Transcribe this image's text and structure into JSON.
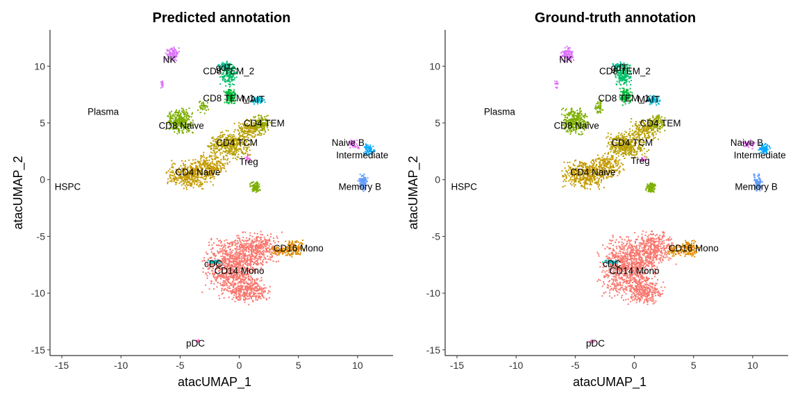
{
  "chart_data": [
    {
      "type": "scatter",
      "title": "Predicted annotation",
      "xlabel": "atacUMAP_1",
      "ylabel": "atacUMAP_2",
      "xlim": [
        -16,
        13
      ],
      "ylim": [
        -15.5,
        13.2
      ],
      "xticks": [
        -15,
        -10,
        -5,
        0,
        5,
        10
      ],
      "yticks": [
        -15,
        -10,
        -5,
        0,
        5,
        10
      ],
      "grid": false,
      "clusters": [
        {
          "name": "CD14 Mono",
          "color": "#F8766D",
          "label_x": 0,
          "label_y": -8.0,
          "label": "CD14 Mono"
        },
        {
          "name": "CD16 Mono",
          "color": "#DE8C00",
          "label_x": 5,
          "label_y": -6.0,
          "label": "CD16 Mono"
        },
        {
          "name": "CD4 Naive",
          "color": "#C49A00",
          "label_x": -3.5,
          "label_y": 0.7,
          "label": "CD4 Naive"
        },
        {
          "name": "CD4 TCM",
          "color": "#B79F00",
          "label_x": -0.2,
          "label_y": 3.3,
          "label": "CD4 TCM"
        },
        {
          "name": "CD4 TEM",
          "color": "#99A800",
          "label_x": 2.1,
          "label_y": 5.0,
          "label": "CD4 TEM"
        },
        {
          "name": "CD8 Naive",
          "color": "#7CAE00",
          "label_x": -4.9,
          "label_y": 4.8,
          "label": "CD8 Naive"
        },
        {
          "name": "CD8 TEM_1",
          "color": "#00BA38",
          "label_x": -0.9,
          "label_y": 7.2,
          "label": "CD8 TEM_1"
        },
        {
          "name": "CD8 TEM_2",
          "color": "#00BE67",
          "label_x": -0.9,
          "label_y": 9.6,
          "label": "CD8 TEM_2"
        },
        {
          "name": "gdT",
          "color": "#00C19A",
          "label_x": -1.3,
          "label_y": 9.9,
          "label": "gdT"
        },
        {
          "name": "MAIT",
          "color": "#00BCD8",
          "label_x": 1.2,
          "label_y": 7.1,
          "label": "MAIT"
        },
        {
          "name": "Treg",
          "color": "#F564E3",
          "label_x": 0.8,
          "label_y": 1.6,
          "label": "Treg"
        },
        {
          "name": "Naive B",
          "color": "#E76BF3",
          "label_x": 9.2,
          "label_y": 3.3,
          "label": "Naive B"
        },
        {
          "name": "Intermediate",
          "color": "#00A9FF",
          "label_x": 10.4,
          "label_y": 2.2,
          "label": "Intermediate"
        },
        {
          "name": "Memory B",
          "color": "#619CFF",
          "label_x": 10.2,
          "label_y": -0.6,
          "label": "Memory B"
        },
        {
          "name": "NK",
          "color": "#DB72FB",
          "label_x": -5.9,
          "label_y": 10.6,
          "label": "NK"
        },
        {
          "name": "cDC",
          "color": "#00BFC4",
          "label_x": -2.2,
          "label_y": -7.4,
          "label": "cDC"
        },
        {
          "name": "pDC",
          "color": "#FF61C3",
          "label_x": -3.7,
          "label_y": -14.4,
          "label": "pDC"
        },
        {
          "name": "Plasma",
          "color": "#FD61D1",
          "label_x": -11.5,
          "label_y": 6.0,
          "label": "Plasma"
        },
        {
          "name": "HSPC",
          "color": "#A3A500",
          "label_x": -14.5,
          "label_y": -0.6,
          "label": "HSPC"
        }
      ]
    },
    {
      "type": "scatter",
      "title": "Ground-truth annotation",
      "xlabel": "atacUMAP_1",
      "ylabel": "atacUMAP_2",
      "xlim": [
        -16,
        13
      ],
      "ylim": [
        -15.5,
        13.2
      ],
      "xticks": [
        -15,
        -10,
        -5,
        0,
        5,
        10
      ],
      "yticks": [
        -15,
        -10,
        -5,
        0,
        5,
        10
      ],
      "grid": false,
      "clusters": [
        {
          "name": "CD14 Mono",
          "color": "#F8766D",
          "label_x": 0,
          "label_y": -8.0,
          "label": "CD14 Mono"
        },
        {
          "name": "CD16 Mono",
          "color": "#DE8C00",
          "label_x": 5,
          "label_y": -6.0,
          "label": "CD16 Mono"
        },
        {
          "name": "CD4 Naive",
          "color": "#C49A00",
          "label_x": -3.5,
          "label_y": 0.7,
          "label": "CD4 Naive"
        },
        {
          "name": "CD4 TCM",
          "color": "#B79F00",
          "label_x": -0.2,
          "label_y": 3.3,
          "label": "CD4 TCM"
        },
        {
          "name": "CD4 TEM",
          "color": "#99A800",
          "label_x": 2.2,
          "label_y": 5.0,
          "label": "CD4 TEM"
        },
        {
          "name": "CD8 Naive",
          "color": "#7CAE00",
          "label_x": -4.9,
          "label_y": 4.8,
          "label": "CD8 Naive"
        },
        {
          "name": "CD8 TEM_1",
          "color": "#00BA38",
          "label_x": -0.9,
          "label_y": 7.2,
          "label": "CD8 TEM_1"
        },
        {
          "name": "CD8 TEM_2",
          "color": "#00BE67",
          "label_x": -0.8,
          "label_y": 9.6,
          "label": "CD8 TEM_2"
        },
        {
          "name": "gdT",
          "color": "#00C19A",
          "label_x": -1.3,
          "label_y": 9.9,
          "label": "gdT"
        },
        {
          "name": "MAIT",
          "color": "#00BCD8",
          "label_x": 1.2,
          "label_y": 7.1,
          "label": "MAIT"
        },
        {
          "name": "Treg",
          "color": "#F564E3",
          "label_x": 0.5,
          "label_y": 1.7,
          "label": "Treg"
        },
        {
          "name": "Naive B",
          "color": "#E76BF3",
          "label_x": 9.5,
          "label_y": 3.3,
          "label": "Naive B"
        },
        {
          "name": "Intermediate",
          "color": "#00A9FF",
          "label_x": 10.6,
          "label_y": 2.2,
          "label": "Intermediate"
        },
        {
          "name": "Memory B",
          "color": "#619CFF",
          "label_x": 10.3,
          "label_y": -0.6,
          "label": "Memory B"
        },
        {
          "name": "NK",
          "color": "#DB72FB",
          "label_x": -5.8,
          "label_y": 10.6,
          "label": "NK"
        },
        {
          "name": "cDC",
          "color": "#00BFC4",
          "label_x": -1.9,
          "label_y": -7.4,
          "label": "cDC"
        },
        {
          "name": "pDC",
          "color": "#FF61C3",
          "label_x": -3.3,
          "label_y": -14.4,
          "label": "pDC"
        },
        {
          "name": "Plasma",
          "color": "#FD61D1",
          "label_x": -11.4,
          "label_y": 6.0,
          "label": "Plasma"
        },
        {
          "name": "HSPC",
          "color": "#A3A500",
          "label_x": -14.4,
          "label_y": -0.6,
          "label": "HSPC"
        }
      ]
    }
  ]
}
